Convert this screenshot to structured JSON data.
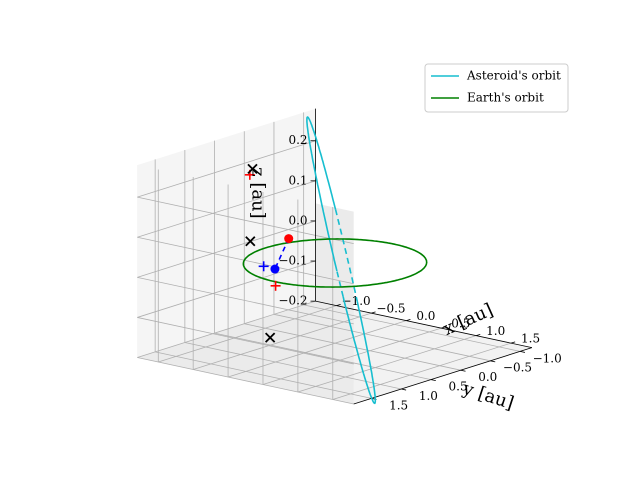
{
  "chart_data": {
    "type": "line",
    "projection": "3d",
    "title": "",
    "xlabel": "$x$ [au]",
    "ylabel": "$y$ [au]",
    "zlabel": "$z$ [au]",
    "xlabel_text": "x [au]",
    "ylabel_text": "y [au]",
    "zlabel_text": "z [au]",
    "xlim": [
      -1.3,
      1.8
    ],
    "ylim": [
      -1.2,
      1.8
    ],
    "zlim": [
      -0.2,
      0.28
    ],
    "xticks": [
      -1.0,
      -0.5,
      0.0,
      0.5,
      1.0,
      1.5
    ],
    "yticks": [
      -1.0,
      -0.5,
      0.0,
      0.5,
      1.0,
      1.5
    ],
    "zticks": [
      -0.2,
      -0.1,
      0.0,
      0.1,
      0.2
    ],
    "xtick_labels": [
      "−1.0",
      "−0.5",
      "0.0",
      "0.5",
      "1.0",
      "1.5"
    ],
    "ytick_labels": [
      "−1.0",
      "−0.5",
      "0.0",
      "0.5",
      "1.0",
      "1.5"
    ],
    "ztick_labels": [
      "−0.2",
      "−0.1",
      "0.0",
      "0.1",
      "0.2"
    ],
    "grid": true,
    "legend_position": "top-right",
    "series": [
      {
        "name": "Asteroid's orbit",
        "kind": "ellipse",
        "color": "#17becf",
        "center": [
          0.3,
          0.25,
          0.03
        ],
        "axis_a": [
          1.3,
          1.15,
          -0.18
        ],
        "axis_b": [
          -0.2,
          0.2,
          0.22
        ],
        "hidden_segment": true
      },
      {
        "name": "Earth's orbit",
        "kind": "circle",
        "color": "#008000",
        "center": [
          0.0,
          0.0,
          0.0
        ],
        "radius": 1.0
      }
    ],
    "markers": [
      {
        "type": "point",
        "color": "#ff0000",
        "x": 0.46,
        "y": 1.32,
        "z": 0.14
      },
      {
        "type": "point",
        "color": "#0000ff",
        "x": -0.35,
        "y": 0.6,
        "z": 0.0
      },
      {
        "type": "plus",
        "color": "#0000ff",
        "x": -0.52,
        "y": 0.59,
        "z": 0.0
      },
      {
        "type": "plus",
        "color": "#ff0000",
        "x": 0.0,
        "y": 1.0,
        "z": -0.01
      },
      {
        "type": "plus",
        "color": "#ff0000",
        "x": -1.05,
        "y": 0.2,
        "z": 0.19
      },
      {
        "type": "cross",
        "color": "#000000",
        "x": -1.08,
        "y": 0.12,
        "z": 0.2
      },
      {
        "type": "cross",
        "color": "#000000",
        "x": -0.66,
        "y": 0.65,
        "z": 0.06
      },
      {
        "type": "cross",
        "color": "#000000",
        "x": 0.16,
        "y": 1.28,
        "z": -0.12
      }
    ],
    "dashed_lines": [
      {
        "color": "#0000ff",
        "from": [
          0.46,
          1.32,
          0.14
        ],
        "to": [
          -0.35,
          0.6,
          0.0
        ]
      }
    ]
  }
}
